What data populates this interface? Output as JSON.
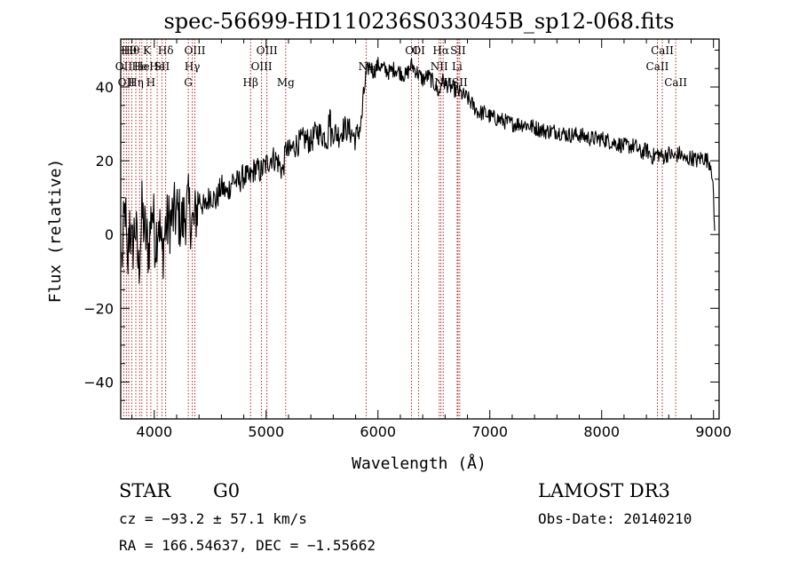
{
  "chart_data": {
    "type": "line",
    "title": "spec-56699-HD110236S033045B_sp12-068.fits",
    "xlabel": "Wavelength (Å)",
    "ylabel": "Flux (relative)",
    "xlim": [
      3700,
      9050
    ],
    "ylim": [
      -50,
      53
    ],
    "x_ticks": [
      4000,
      5000,
      6000,
      7000,
      8000,
      9000
    ],
    "x_tick_labels": [
      "4000",
      "5000",
      "6000",
      "7000",
      "8000",
      "9000"
    ],
    "y_ticks": [
      -40,
      -20,
      0,
      20,
      40
    ],
    "y_tick_labels": [
      "−40",
      "−20",
      "0",
      "20",
      "40"
    ],
    "series": [
      {
        "name": "flux",
        "x": [
          3710,
          3740,
          3760,
          3780,
          3800,
          3830,
          3860,
          3890,
          3920,
          3950,
          3980,
          4010,
          4040,
          4070,
          4100,
          4150,
          4200,
          4250,
          4300,
          4350,
          4400,
          4450,
          4500,
          4550,
          4600,
          4650,
          4700,
          4750,
          4800,
          4850,
          4900,
          4950,
          5000,
          5050,
          5100,
          5150,
          5180,
          5200,
          5250,
          5300,
          5350,
          5400,
          5450,
          5500,
          5550,
          5570,
          5580,
          5600,
          5650,
          5700,
          5750,
          5800,
          5850,
          5880,
          5900,
          5930,
          5960,
          6000,
          6050,
          6100,
          6150,
          6200,
          6250,
          6300,
          6350,
          6400,
          6450,
          6500,
          6550,
          6570,
          6600,
          6650,
          6700,
          6750,
          6800,
          6850,
          6900,
          6950,
          7000,
          7100,
          7200,
          7300,
          7400,
          7500,
          7600,
          7700,
          7800,
          7900,
          8000,
          8100,
          8200,
          8300,
          8350,
          8400,
          8450,
          8500,
          8550,
          8600,
          8650,
          8700,
          8750,
          8800,
          8850,
          8900,
          8950,
          8980,
          9000,
          9010
        ],
        "y": [
          -8,
          8,
          -12,
          5,
          -5,
          3,
          -10,
          6,
          0,
          -4,
          8,
          -2,
          5,
          -6,
          2,
          4,
          6,
          3,
          8,
          2,
          10,
          7,
          11,
          9,
          13,
          11,
          15,
          14,
          16,
          15,
          18,
          17,
          19,
          21,
          20,
          17,
          24,
          22,
          24,
          25,
          26,
          25,
          28,
          27,
          26,
          34,
          27,
          28,
          27,
          29,
          28,
          26,
          30,
          40,
          44,
          46,
          44,
          46,
          45,
          44,
          45,
          44,
          43,
          46,
          44,
          42,
          43,
          41,
          38,
          42,
          41,
          40,
          39,
          38,
          37,
          35,
          33,
          33,
          32,
          31,
          30,
          30,
          29,
          28,
          28,
          27,
          27,
          26,
          26,
          25,
          24,
          24,
          22,
          23,
          21,
          22,
          21,
          22,
          21,
          22,
          20,
          21,
          20,
          21,
          20,
          19,
          10,
          1
        ]
      }
    ],
    "line_labels": [
      {
        "wavelength": 3727,
        "text": "OII",
        "row": 2
      },
      {
        "wavelength": 3750,
        "text": "OII",
        "row": 3
      },
      {
        "wavelength": 3771,
        "text": "Hθ",
        "row": 1
      },
      {
        "wavelength": 3798,
        "text": "Hθ",
        "row": 1
      },
      {
        "wavelength": 3835,
        "text": "Hη",
        "row": 3
      },
      {
        "wavelength": 3869,
        "text": "He",
        "row": 2
      },
      {
        "wavelength": 3889,
        "text": "He",
        "row": 2
      },
      {
        "wavelength": 3934,
        "text": "K",
        "row": 1
      },
      {
        "wavelength": 3969,
        "text": "H",
        "row": 3
      },
      {
        "wavelength": 4026,
        "text": "He",
        "row": 2
      },
      {
        "wavelength": 4068,
        "text": "SII",
        "row": 2
      },
      {
        "wavelength": 4102,
        "text": "Hδ",
        "row": 1
      },
      {
        "wavelength": 4304,
        "text": "G",
        "row": 3
      },
      {
        "wavelength": 4340,
        "text": "Hγ",
        "row": 2
      },
      {
        "wavelength": 4363,
        "text": "OIII",
        "row": 1
      },
      {
        "wavelength": 4861,
        "text": "Hβ",
        "row": 3
      },
      {
        "wavelength": 4959,
        "text": "OIII",
        "row": 2
      },
      {
        "wavelength": 5007,
        "text": "OIII",
        "row": 1
      },
      {
        "wavelength": 5175,
        "text": "Mg",
        "row": 3
      },
      {
        "wavelength": 5894,
        "text": "Na",
        "row": 2
      },
      {
        "wavelength": 6300,
        "text": "OI",
        "row": 1
      },
      {
        "wavelength": 6364,
        "text": "OI",
        "row": 1
      },
      {
        "wavelength": 6548,
        "text": "NII",
        "row": 2
      },
      {
        "wavelength": 6563,
        "text": "Hα",
        "row": 1
      },
      {
        "wavelength": 6583,
        "text": "NII",
        "row": 3
      },
      {
        "wavelength": 6708,
        "text": "Li",
        "row": 2
      },
      {
        "wavelength": 6716,
        "text": "SII",
        "row": 1
      },
      {
        "wavelength": 6731,
        "text": "SII",
        "row": 3
      },
      {
        "wavelength": 8498,
        "text": "CaII",
        "row": 2
      },
      {
        "wavelength": 8542,
        "text": "CaII",
        "row": 1
      },
      {
        "wavelength": 8662,
        "text": "CaII",
        "row": 3
      }
    ]
  },
  "info": {
    "object_class": "STAR",
    "subclass": "G0",
    "survey": "LAMOST DR3",
    "redshift": "cz = −93.2 ± 57.1 km/s",
    "obs_date": "Obs-Date: 20140210",
    "coords": "RA = 166.54637, DEC =  −1.55662"
  },
  "colors": {
    "line_marker": "#aa1111",
    "spectrum": "#000000",
    "axes": "#000000",
    "background": "#ffffff"
  }
}
